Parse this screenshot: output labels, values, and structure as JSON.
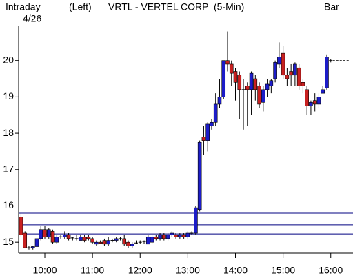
{
  "chart_data": {
    "type": "candlestick",
    "header": {
      "mode": "Intraday",
      "date": "4/26",
      "side": "(Left)",
      "title": "VRTL - VERTEL CORP  (5-Min)",
      "style": "Bar"
    },
    "x": [
      570,
      575,
      580,
      585,
      590,
      595,
      600,
      605,
      610,
      615,
      620,
      625,
      630,
      635,
      640,
      645,
      650,
      655,
      660,
      665,
      670,
      675,
      680,
      685,
      690,
      695,
      700,
      705,
      710,
      715,
      720,
      725,
      730,
      735,
      740,
      745,
      750,
      755,
      760,
      765,
      770,
      775,
      780,
      785,
      790,
      795,
      800,
      805,
      810,
      815,
      820,
      825,
      830,
      835,
      840,
      845,
      850,
      855,
      860,
      865,
      870,
      875,
      880,
      885,
      890,
      895,
      900,
      905,
      910,
      915,
      920,
      925,
      930,
      935,
      940,
      945,
      950,
      955,
      960
    ],
    "open": [
      15.7,
      15.25,
      14.85,
      14.85,
      14.88,
      15.1,
      15.35,
      15.15,
      15.3,
      15.0,
      15.15,
      15.15,
      15.2,
      15.1,
      15.1,
      15.05,
      15.15,
      15.15,
      15.1,
      14.95,
      15.0,
      15.05,
      14.95,
      15.05,
      15.05,
      15.1,
      15.1,
      15.0,
      14.9,
      15.0,
      14.98,
      15.0,
      14.95,
      15.0,
      15.15,
      15.1,
      15.2,
      15.1,
      15.2,
      15.2,
      15.15,
      15.2,
      15.15,
      15.25,
      15.25,
      15.9,
      17.9,
      17.8,
      18.2,
      18.3,
      18.8,
      19.0,
      20.0,
      19.9,
      19.7,
      19.6,
      19.2,
      19.3,
      19.2,
      19.5,
      19.3,
      18.85,
      19.2,
      19.3,
      19.5,
      19.9,
      20.2,
      19.6,
      19.7,
      19.6,
      19.8,
      19.4,
      19.2,
      18.75,
      18.9,
      18.8,
      19.1,
      19.25,
      20.0
    ],
    "high": [
      15.8,
      15.3,
      14.9,
      14.9,
      15.1,
      15.45,
      15.45,
      15.4,
      15.35,
      15.2,
      15.2,
      15.3,
      15.25,
      15.15,
      15.2,
      15.2,
      15.2,
      15.2,
      15.15,
      15.05,
      15.05,
      15.1,
      15.15,
      15.1,
      15.15,
      15.15,
      15.2,
      15.05,
      15.0,
      15.05,
      15.05,
      15.05,
      15.2,
      15.2,
      15.2,
      15.25,
      15.25,
      15.25,
      15.3,
      15.25,
      15.25,
      15.25,
      15.3,
      15.3,
      16.0,
      17.8,
      18.2,
      18.3,
      18.4,
      19.1,
      19.5,
      20.0,
      20.8,
      20.0,
      19.8,
      19.7,
      19.5,
      19.4,
      19.7,
      19.6,
      19.4,
      19.3,
      19.5,
      19.5,
      20.0,
      20.5,
      20.4,
      19.8,
      19.9,
      19.95,
      19.9,
      19.5,
      19.3,
      18.9,
      19.1,
      19.1,
      19.3,
      20.15,
      20.05
    ],
    "low": [
      15.15,
      14.85,
      14.8,
      14.8,
      14.85,
      15.05,
      15.1,
      15.1,
      14.95,
      14.95,
      15.1,
      15.1,
      15.05,
      15.05,
      15.05,
      15.05,
      15.0,
      15.05,
      14.95,
      14.9,
      14.95,
      14.9,
      14.9,
      15.0,
      15.0,
      15.05,
      14.9,
      14.85,
      14.85,
      14.95,
      14.95,
      14.95,
      14.95,
      14.95,
      15.05,
      15.05,
      15.05,
      15.05,
      15.15,
      15.1,
      15.1,
      15.1,
      15.1,
      15.2,
      15.2,
      15.85,
      17.4,
      17.5,
      18.1,
      18.2,
      18.7,
      18.95,
      19.7,
      19.3,
      18.9,
      18.4,
      18.1,
      18.2,
      18.5,
      18.9,
      18.7,
      18.6,
      19.0,
      19.1,
      19.4,
      19.8,
      19.5,
      19.3,
      19.3,
      19.3,
      19.2,
      19.1,
      18.5,
      18.5,
      18.6,
      18.7,
      19.1,
      19.2,
      19.95
    ],
    "close": [
      15.2,
      14.85,
      14.85,
      14.88,
      15.1,
      15.35,
      15.15,
      15.35,
      15.0,
      15.15,
      15.15,
      15.2,
      15.1,
      15.12,
      15.1,
      15.15,
      15.05,
      15.1,
      15.0,
      15.0,
      14.97,
      14.95,
      15.05,
      15.05,
      15.1,
      15.1,
      14.95,
      14.9,
      14.95,
      14.98,
      15.0,
      15.02,
      15.15,
      15.15,
      15.1,
      15.2,
      15.1,
      15.2,
      15.25,
      15.15,
      15.2,
      15.15,
      15.25,
      15.25,
      15.95,
      17.75,
      17.8,
      18.25,
      18.3,
      18.8,
      19.0,
      20.0,
      19.9,
      19.65,
      19.4,
      19.2,
      19.2,
      19.2,
      19.65,
      19.2,
      18.8,
      19.2,
      19.35,
      19.45,
      19.95,
      20.1,
      19.6,
      19.5,
      19.6,
      19.9,
      19.3,
      19.3,
      18.75,
      18.85,
      18.8,
      19.0,
      19.2,
      20.1,
      20.0
    ],
    "up_color": "#1c1cc8",
    "down_color": "#c82020",
    "level_color": "#000080",
    "levels": [
      15.8,
      15.48,
      15.23
    ],
    "xlim": [
      567,
      988
    ],
    "ylim": [
      14.7,
      21.0
    ],
    "xticks": [
      {
        "value": 600,
        "label": "10:00"
      },
      {
        "value": 660,
        "label": "11:00"
      },
      {
        "value": 720,
        "label": "12:00"
      },
      {
        "value": 780,
        "label": "13:00"
      },
      {
        "value": 840,
        "label": "14:00"
      },
      {
        "value": 900,
        "label": "15:00"
      },
      {
        "value": 960,
        "label": "16:00"
      }
    ],
    "yticks": [
      15,
      16,
      17,
      18,
      19,
      20
    ]
  }
}
